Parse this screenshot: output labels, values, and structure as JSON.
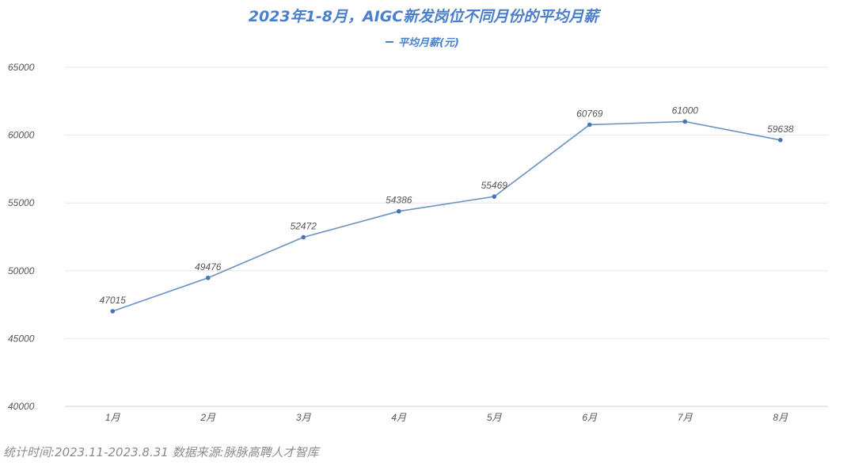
{
  "chart_data": {
    "type": "line",
    "title": "2023年1-8月，AIGC新发岗位不同月份的平均月薪",
    "legend_position": "top-center",
    "categories": [
      "1月",
      "2月",
      "3月",
      "4月",
      "5月",
      "6月",
      "7月",
      "8月"
    ],
    "series": [
      {
        "name": "平均月薪(元)",
        "values": [
          47015,
          49476,
          52472,
          54386,
          55469,
          60769,
          61000,
          59638
        ]
      }
    ],
    "ylim": [
      40000,
      65000
    ],
    "yticks": [
      40000,
      45000,
      50000,
      55000,
      60000,
      65000
    ],
    "grid": true,
    "colors": {
      "title": "#4a7fcb",
      "line": "#6a92c3",
      "point": "#4a72b8",
      "grid": "#e6e6e6",
      "text": "#555555"
    }
  },
  "footnote": "统计时间:2023.11-2023.8.31 数据来源:脉脉高聘人才智库"
}
